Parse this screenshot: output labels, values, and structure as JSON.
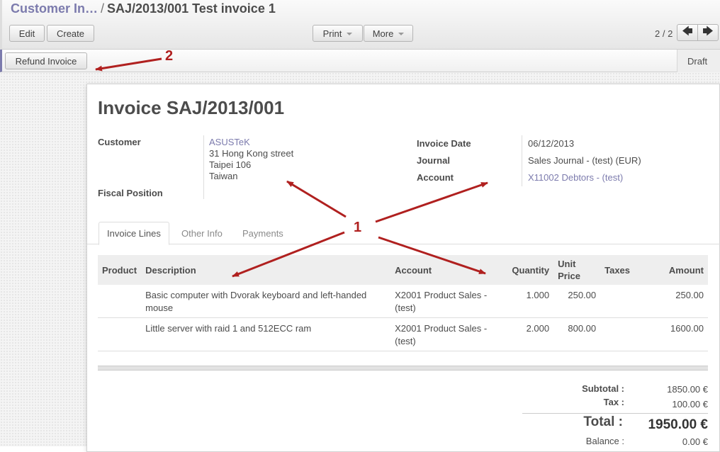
{
  "breadcrumb": {
    "parent": "Customer In…",
    "separator": "/",
    "current": "SAJ/2013/001 Test invoice 1"
  },
  "toolbar": {
    "edit": "Edit",
    "create": "Create",
    "print": "Print",
    "more": "More",
    "pager": "2 / 2"
  },
  "statusbar": {
    "refund": "Refund Invoice",
    "state": "Draft"
  },
  "invoice": {
    "title": "Invoice SAJ/2013/001",
    "customer_label": "Customer",
    "customer_name": "ASUSTeK",
    "address": [
      "31 Hong Kong street",
      "Taipei 106",
      "Taiwan"
    ],
    "fiscal_position_label": "Fiscal Position",
    "date_label": "Invoice Date",
    "date": "06/12/2013",
    "journal_label": "Journal",
    "journal": "Sales Journal - (test) (EUR)",
    "account_label": "Account",
    "account": "X11002 Debtors - (test)"
  },
  "tabs": [
    "Invoice Lines",
    "Other Info",
    "Payments"
  ],
  "lines": {
    "headers": [
      "Product",
      "Description",
      "Account",
      "Quantity",
      "Unit Price",
      "Taxes",
      "Amount"
    ],
    "rows": [
      {
        "product": "",
        "description": "Basic computer with Dvorak keyboard and left-handed mouse",
        "account": "X2001 Product Sales - (test)",
        "quantity": "1.000",
        "unit_price": "250.00",
        "taxes": "",
        "amount": "250.00"
      },
      {
        "product": "",
        "description": "Little server with raid 1 and 512ECC ram",
        "account": "X2001 Product Sales - (test)",
        "quantity": "2.000",
        "unit_price": "800.00",
        "taxes": "",
        "amount": "1600.00"
      }
    ]
  },
  "totals": {
    "subtotal_label": "Subtotal :",
    "subtotal": "1850.00 €",
    "tax_label": "Tax :",
    "tax": "100.00 €",
    "total_label": "Total :",
    "total": "1950.00 €",
    "balance_label": "Balance :",
    "balance": "0.00 €"
  },
  "annotations": {
    "one": "1",
    "two": "2",
    "color": "#b0201f"
  }
}
